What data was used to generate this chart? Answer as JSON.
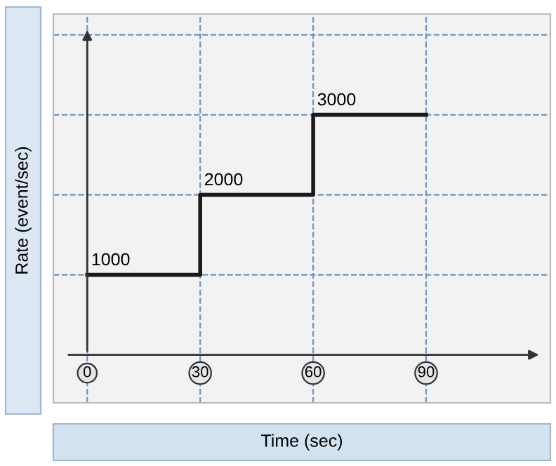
{
  "chart_data": {
    "type": "step",
    "xlabel": "Time (sec)",
    "ylabel": "Rate (event/sec)",
    "x": [
      0,
      30,
      60,
      90
    ],
    "values": [
      1000,
      2000,
      3000,
      3000
    ],
    "value_labels": [
      "1000",
      "2000",
      "3000",
      null
    ],
    "color": "#1a1a1a",
    "xlim": [
      -9,
      123
    ],
    "xticks": [
      0,
      30,
      60,
      90
    ],
    "ylim": [
      -600,
      4260
    ],
    "yticks": [
      {
        "value": 1000,
        "label": null
      },
      {
        "value": 2000,
        "label": null
      },
      {
        "value": 3000,
        "label": null
      },
      {
        "value": 4000,
        "label": null
      }
    ],
    "grid": true,
    "line_style": "solid"
  }
}
